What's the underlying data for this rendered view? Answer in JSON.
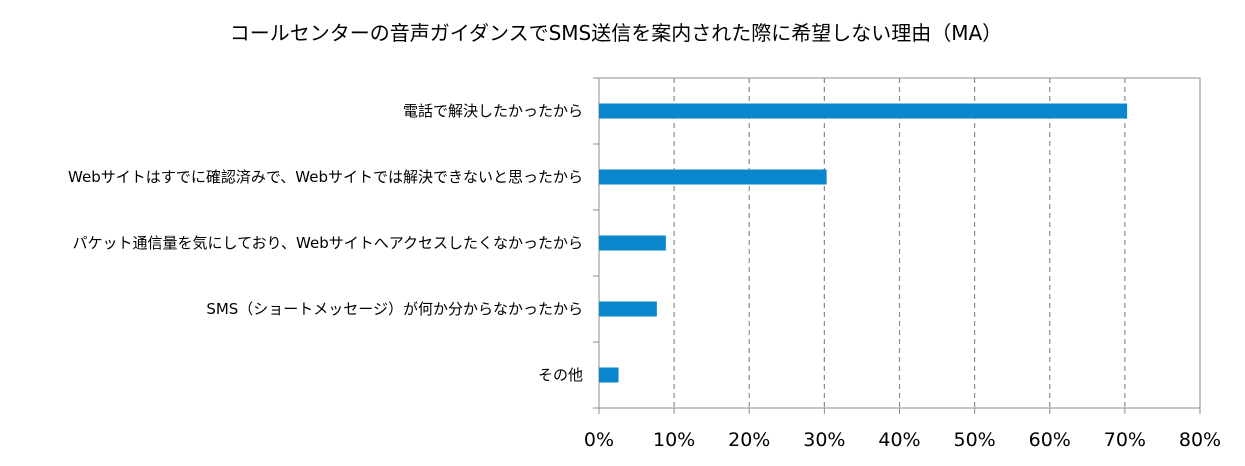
{
  "chart_data": {
    "type": "bar",
    "orientation": "horizontal",
    "title": "コールセンターの音声ガイダンスでSMS送信を案内された際に希望しない理由（MA）",
    "categories": [
      "電話で解決したかったから",
      "Webサイトはすでに確認済みで、Webサイトでは解決できないと思ったから",
      "パケット通信量を気にしており、Webサイトへアクセスしたくなかったから",
      "SMS（ショートメッセージ）が何か分からなかったから",
      "その他"
    ],
    "values": [
      70.3,
      30.3,
      8.9,
      7.7,
      2.6
    ],
    "value_unit": "%",
    "xlim": [
      0,
      80
    ],
    "x_ticks": [
      0,
      10,
      20,
      30,
      40,
      50,
      60,
      70,
      80
    ],
    "x_tick_labels": [
      "0%",
      "10%",
      "20%",
      "30%",
      "40%",
      "50%",
      "60%",
      "70%",
      "80%"
    ],
    "xlabel": "",
    "ylabel": "",
    "grid": "vertical dashed",
    "legend": "none",
    "bar_color": "#0a86cc",
    "grid_color": "#8c8c8c",
    "axis_color": "#8c8c8c"
  }
}
